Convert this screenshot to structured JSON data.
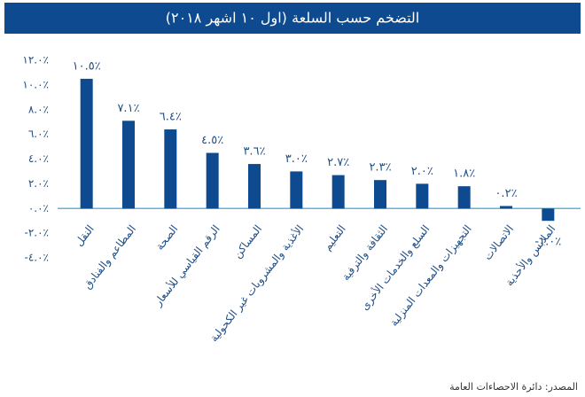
{
  "chart_data": {
    "type": "bar",
    "title": "التضخم حسب السلعة (اول ١٠ اشهر ٢٠١٨)",
    "categories": [
      "النقل",
      "المطاعم والفنادق",
      "الصحة",
      "الرقم القياسي للأسعار",
      "المساكن",
      "الأغذية والمشروبات غير الكحولية",
      "التعليم",
      "الثقافة والترفية",
      "السلع والخدمات الأخرى",
      "التجهيزات والمعدات المنزلية",
      "الاتصالات",
      "الملابس والأحذية"
    ],
    "values": [
      10.5,
      7.1,
      6.4,
      4.5,
      3.6,
      3.0,
      2.7,
      2.3,
      2.0,
      1.8,
      0.2,
      -1.0
    ],
    "value_labels": [
      "١٠.٥٪",
      "٧.١٪",
      "٦.٤٪",
      "٤.٥٪",
      "٣.٦٪",
      "٣.٠٪",
      "٢.٧٪",
      "٢.٣٪",
      "٢.٠٪",
      "١.٨٪",
      "٠.٢٪",
      "-١.٠٪"
    ],
    "color": "#0d4a8f",
    "ylim": [
      -4,
      12
    ],
    "yticks": [
      {
        "value": -4,
        "label": "-٤.٠٪"
      },
      {
        "value": -2,
        "label": "-٢.٠٪"
      },
      {
        "value": 0,
        "label": "٠.٠٪"
      },
      {
        "value": 2,
        "label": "٢.٠٪"
      },
      {
        "value": 4,
        "label": "٤.٠٪"
      },
      {
        "value": 6,
        "label": "٦.٠٪"
      },
      {
        "value": 8,
        "label": "٨.٠٪"
      },
      {
        "value": 10,
        "label": "١٠.٠٪"
      },
      {
        "value": 12,
        "label": "١٢.٠٪"
      }
    ],
    "source": "المصدر: دائرة الاحصاءات العامة"
  }
}
